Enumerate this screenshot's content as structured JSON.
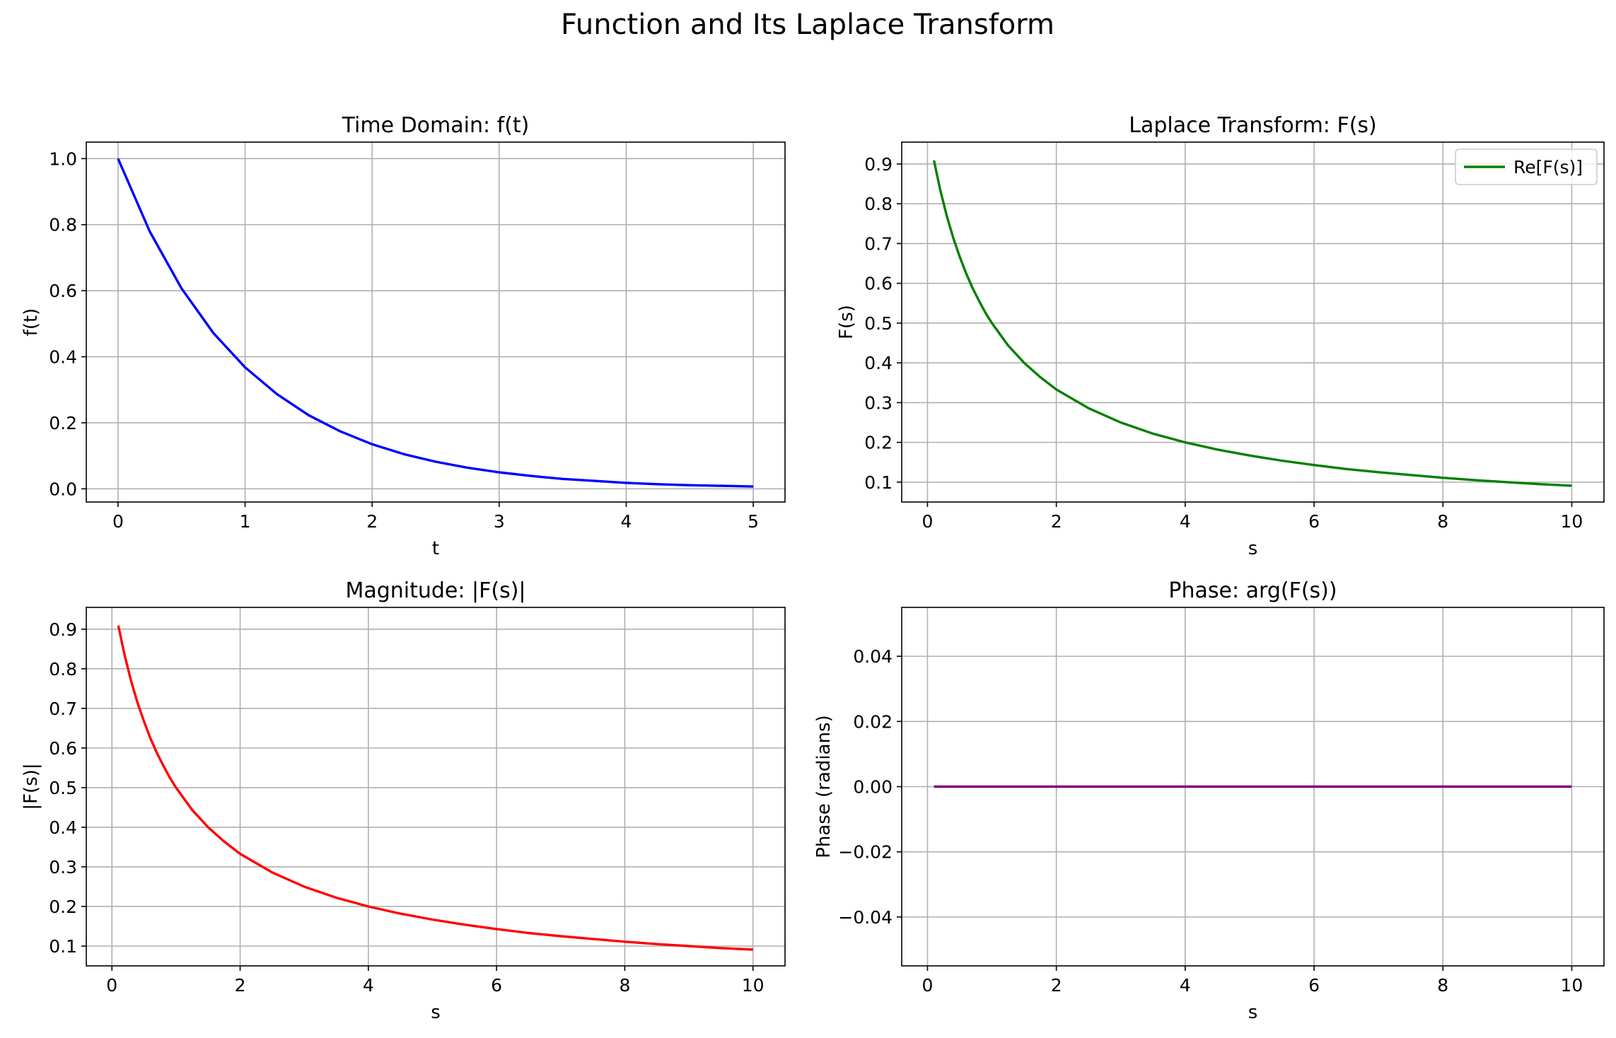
{
  "figure": {
    "title": "Function and Its Laplace Transform"
  },
  "chart_data": [
    {
      "id": "time",
      "type": "line",
      "title": "Time Domain: f(t)",
      "xlabel": "t",
      "ylabel": "f(t)",
      "xlim": [
        -0.25,
        5.25
      ],
      "ylim": [
        -0.04,
        1.05
      ],
      "xticks": [
        0,
        1,
        2,
        3,
        4,
        5
      ],
      "xtick_labels": [
        "0",
        "1",
        "2",
        "3",
        "4",
        "5"
      ],
      "yticks": [
        0,
        0.2,
        0.4,
        0.6,
        0.8,
        1.0
      ],
      "ytick_labels": [
        "0.0",
        "0.2",
        "0.4",
        "0.6",
        "0.8",
        "1.0"
      ],
      "grid": true,
      "legend": null,
      "series": [
        {
          "color": "#0000ff",
          "x": [
            0,
            0.25,
            0.5,
            0.75,
            1,
            1.25,
            1.5,
            1.75,
            2,
            2.25,
            2.5,
            2.75,
            3,
            3.25,
            3.5,
            3.75,
            4,
            4.25,
            4.5,
            4.75,
            5
          ],
          "y": [
            1.0,
            0.779,
            0.607,
            0.472,
            0.368,
            0.287,
            0.223,
            0.174,
            0.135,
            0.105,
            0.082,
            0.064,
            0.05,
            0.039,
            0.03,
            0.024,
            0.018,
            0.014,
            0.011,
            0.009,
            0.007
          ]
        }
      ]
    },
    {
      "id": "laplace",
      "type": "line",
      "title": "Laplace Transform: F(s)",
      "xlabel": "s",
      "ylabel": "F(s)",
      "xlim": [
        -0.4,
        10.5
      ],
      "ylim": [
        0.05,
        0.955
      ],
      "xticks": [
        0,
        2,
        4,
        6,
        8,
        10
      ],
      "xtick_labels": [
        "0",
        "2",
        "4",
        "6",
        "8",
        "10"
      ],
      "yticks": [
        0.1,
        0.2,
        0.3,
        0.4,
        0.5,
        0.6,
        0.7,
        0.8,
        0.9
      ],
      "ytick_labels": [
        "0.1",
        "0.2",
        "0.3",
        "0.4",
        "0.5",
        "0.6",
        "0.7",
        "0.8",
        "0.9"
      ],
      "grid": true,
      "legend": "top-right",
      "series": [
        {
          "name": "Re[F(s)]",
          "color": "#008000",
          "x": [
            0.1,
            0.2,
            0.3,
            0.4,
            0.5,
            0.6,
            0.7,
            0.8,
            0.9,
            1,
            1.25,
            1.5,
            1.75,
            2,
            2.5,
            3,
            3.5,
            4,
            4.5,
            5,
            5.5,
            6,
            6.5,
            7,
            7.5,
            8,
            8.5,
            9,
            9.5,
            10
          ],
          "y": [
            0.909,
            0.833,
            0.769,
            0.714,
            0.667,
            0.625,
            0.588,
            0.556,
            0.526,
            0.5,
            0.444,
            0.4,
            0.364,
            0.333,
            0.286,
            0.25,
            0.222,
            0.2,
            0.182,
            0.167,
            0.154,
            0.143,
            0.133,
            0.125,
            0.118,
            0.111,
            0.105,
            0.1,
            0.095,
            0.091
          ]
        }
      ]
    },
    {
      "id": "magnitude",
      "type": "line",
      "title": "Magnitude: |F(s)|",
      "xlabel": "s",
      "ylabel": "|F(s)|",
      "xlim": [
        -0.4,
        10.5
      ],
      "ylim": [
        0.05,
        0.955
      ],
      "xticks": [
        0,
        2,
        4,
        6,
        8,
        10
      ],
      "xtick_labels": [
        "0",
        "2",
        "4",
        "6",
        "8",
        "10"
      ],
      "yticks": [
        0.1,
        0.2,
        0.3,
        0.4,
        0.5,
        0.6,
        0.7,
        0.8,
        0.9
      ],
      "ytick_labels": [
        "0.1",
        "0.2",
        "0.3",
        "0.4",
        "0.5",
        "0.6",
        "0.7",
        "0.8",
        "0.9"
      ],
      "grid": true,
      "legend": null,
      "series": [
        {
          "color": "#ff0000",
          "x": [
            0.1,
            0.2,
            0.3,
            0.4,
            0.5,
            0.6,
            0.7,
            0.8,
            0.9,
            1,
            1.25,
            1.5,
            1.75,
            2,
            2.5,
            3,
            3.5,
            4,
            4.5,
            5,
            5.5,
            6,
            6.5,
            7,
            7.5,
            8,
            8.5,
            9,
            9.5,
            10
          ],
          "y": [
            0.909,
            0.833,
            0.769,
            0.714,
            0.667,
            0.625,
            0.588,
            0.556,
            0.526,
            0.5,
            0.444,
            0.4,
            0.364,
            0.333,
            0.286,
            0.25,
            0.222,
            0.2,
            0.182,
            0.167,
            0.154,
            0.143,
            0.133,
            0.125,
            0.118,
            0.111,
            0.105,
            0.1,
            0.095,
            0.091
          ]
        }
      ]
    },
    {
      "id": "phase",
      "type": "line",
      "title": "Phase: arg(F(s))",
      "xlabel": "s",
      "ylabel": "Phase (radians)",
      "xlim": [
        -0.4,
        10.5
      ],
      "ylim": [
        -0.055,
        0.055
      ],
      "xticks": [
        0,
        2,
        4,
        6,
        8,
        10
      ],
      "xtick_labels": [
        "0",
        "2",
        "4",
        "6",
        "8",
        "10"
      ],
      "yticks": [
        -0.04,
        -0.02,
        0,
        0.02,
        0.04
      ],
      "ytick_labels": [
        "−0.04",
        "−0.02",
        "0.00",
        "0.02",
        "0.04"
      ],
      "grid": true,
      "legend": null,
      "series": [
        {
          "color": "#800080",
          "x": [
            0.1,
            10
          ],
          "y": [
            0,
            0
          ]
        }
      ]
    }
  ]
}
